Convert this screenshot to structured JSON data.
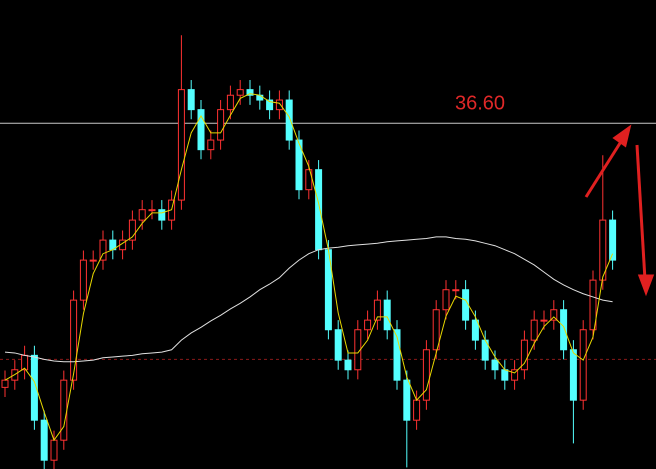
{
  "chart_data": {
    "type": "candlestick",
    "open": [
      33.3,
      33.39,
      33.52,
      33.7,
      32.89,
      32.39,
      32.64,
      33.39,
      34.39,
      34.89,
      34.89,
      35.14,
      35.02,
      35.14,
      35.39,
      35.52,
      35.52,
      35.39,
      35.64,
      37.02,
      36.77,
      36.27,
      36.39,
      36.77,
      36.95,
      37.02,
      36.95,
      36.89,
      36.77,
      36.89,
      36.39,
      35.77,
      36.02,
      35.02,
      34.02,
      33.64,
      33.52,
      34.02,
      34.14,
      34.39,
      34.02,
      33.39,
      32.89,
      33.14,
      33.77,
      34.27,
      34.52,
      34.52,
      34.14,
      33.89,
      33.64,
      33.52,
      33.39,
      33.52,
      33.89,
      34.14,
      34.14,
      34.27,
      33.77,
      33.14,
      34.02,
      34.64,
      35.39
    ],
    "high": [
      33.51,
      33.64,
      33.82,
      33.82,
      33.01,
      32.76,
      33.51,
      34.51,
      35.01,
      35.01,
      35.26,
      35.26,
      35.26,
      35.51,
      35.64,
      35.64,
      35.64,
      35.76,
      37.7,
      37.14,
      36.89,
      36.51,
      36.89,
      37.07,
      37.14,
      37.14,
      37.07,
      37.01,
      37.01,
      37.01,
      36.51,
      36.14,
      36.14,
      35.14,
      34.14,
      33.76,
      34.14,
      34.26,
      34.51,
      34.51,
      34.14,
      33.51,
      33.26,
      33.89,
      34.39,
      34.64,
      34.64,
      34.64,
      34.26,
      34.01,
      33.76,
      33.64,
      33.64,
      34.01,
      34.26,
      34.26,
      34.39,
      34.39,
      33.89,
      34.14,
      34.76,
      36.2,
      35.51
    ],
    "low": [
      33.18,
      33.27,
      33.4,
      32.77,
      32.27,
      32.27,
      32.52,
      33.27,
      34.27,
      34.77,
      34.77,
      34.9,
      34.9,
      35.02,
      35.27,
      35.4,
      35.27,
      35.27,
      35.52,
      36.65,
      36.15,
      36.15,
      36.27,
      36.65,
      36.83,
      36.83,
      36.77,
      36.65,
      36.65,
      36.27,
      35.65,
      35.65,
      34.9,
      33.9,
      33.52,
      33.4,
      33.4,
      33.9,
      34.02,
      33.9,
      33.27,
      32.3,
      32.77,
      33.02,
      33.65,
      34.15,
      34.4,
      34.02,
      33.77,
      33.52,
      33.4,
      33.27,
      33.27,
      33.4,
      33.77,
      34.02,
      34.02,
      33.65,
      32.6,
      33.02,
      33.9,
      34.52,
      34.77
    ],
    "close": [
      33.39,
      33.52,
      33.7,
      32.89,
      32.39,
      32.64,
      33.39,
      34.39,
      34.89,
      34.89,
      35.14,
      35.02,
      35.14,
      35.39,
      35.52,
      35.52,
      35.39,
      35.64,
      37.02,
      36.77,
      36.27,
      36.39,
      36.77,
      36.95,
      37.02,
      36.95,
      36.89,
      36.77,
      36.89,
      36.39,
      35.77,
      36.02,
      35.02,
      34.02,
      33.64,
      33.52,
      34.02,
      34.14,
      34.39,
      34.02,
      33.39,
      32.89,
      33.14,
      33.77,
      34.27,
      34.52,
      34.52,
      34.14,
      33.89,
      33.64,
      33.52,
      33.39,
      33.52,
      33.89,
      34.14,
      34.14,
      34.27,
      33.77,
      33.14,
      34.02,
      34.64,
      35.39,
      34.89
    ],
    "up_color": "#ff3232",
    "down_color": "#54ffff",
    "lines": [
      {
        "color": "#e0e0e0",
        "values": [
          33.74,
          33.73,
          33.7,
          33.68,
          33.65,
          33.63,
          33.62,
          33.62,
          33.63,
          33.64,
          33.67,
          33.68,
          33.69,
          33.7,
          33.72,
          33.73,
          33.74,
          33.77,
          33.89,
          33.98,
          34.05,
          34.13,
          34.2,
          34.28,
          34.35,
          34.43,
          34.52,
          34.59,
          34.67,
          34.79,
          34.89,
          34.97,
          35.02,
          35.04,
          35.05,
          35.07,
          35.08,
          35.09,
          35.1,
          35.12,
          35.13,
          35.14,
          35.15,
          35.16,
          35.18,
          35.18,
          35.16,
          35.15,
          35.13,
          35.1,
          35.07,
          35.02,
          34.97,
          34.9,
          34.83,
          34.74,
          34.65,
          34.58,
          34.52,
          34.47,
          34.43,
          34.39,
          34.37
        ]
      },
      {
        "color": "#e8d800",
        "values": [
          33.39,
          33.46,
          33.54,
          33.37,
          32.99,
          32.64,
          32.81,
          33.47,
          34.22,
          34.72,
          34.97,
          35.02,
          35.1,
          35.18,
          35.35,
          35.48,
          35.48,
          35.52,
          36.02,
          36.48,
          36.69,
          36.48,
          36.48,
          36.7,
          36.91,
          36.97,
          36.95,
          36.87,
          36.85,
          36.68,
          36.35,
          36.06,
          35.6,
          35.02,
          34.23,
          33.73,
          33.73,
          33.89,
          34.18,
          34.18,
          33.93,
          33.43,
          33.14,
          33.27,
          33.73,
          34.19,
          34.44,
          34.39,
          34.18,
          33.89,
          33.68,
          33.52,
          33.48,
          33.6,
          33.85,
          34.06,
          34.18,
          34.06,
          33.73,
          33.64,
          33.93,
          34.68,
          34.97
        ]
      }
    ],
    "hlines": [
      {
        "value": 36.6,
        "label": "36.60",
        "color": "#c8c8c8",
        "label_color": "#e02828"
      },
      {
        "value": 33.65,
        "color": "#8a1a1a",
        "dashed": true
      }
    ],
    "ylim": [
      32.28,
      38.14
    ]
  }
}
